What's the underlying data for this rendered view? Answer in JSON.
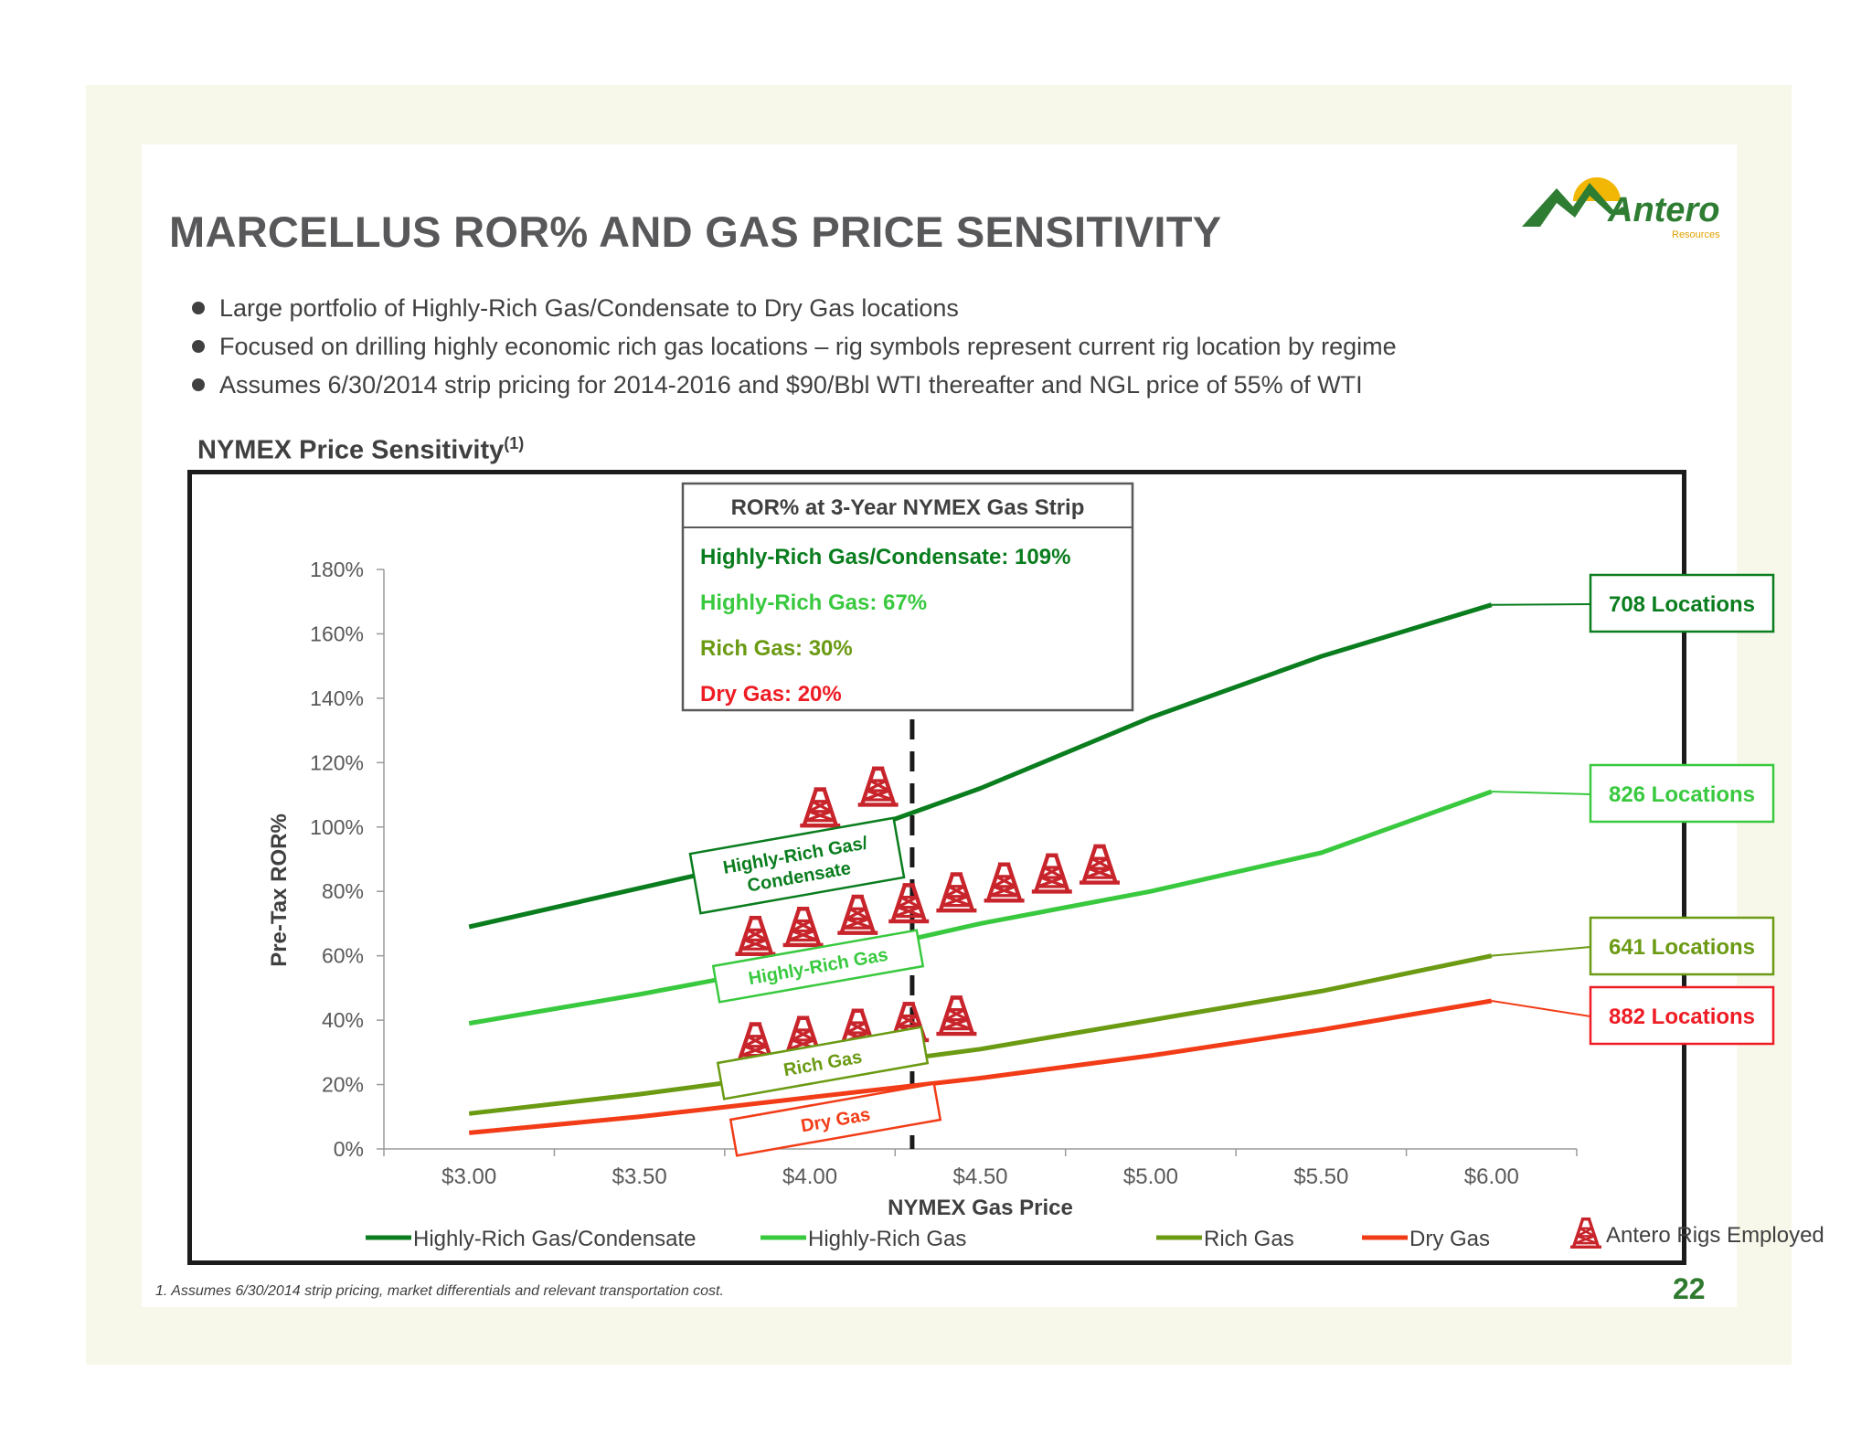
{
  "slide": {
    "title": "MARCELLUS ROR% AND GAS PRICE SENSITIVITY",
    "logo_text": "Antero",
    "logo_subtext": "Resources",
    "bullets": [
      "Large portfolio of Highly-Rich Gas/Condensate to Dry Gas locations",
      "Focused on drilling highly economic rich gas locations – rig symbols represent current rig location by regime",
      "Assumes 6/30/2014 strip pricing for 2014-2016 and $90/Bbl WTI thereafter and NGL price of 55% of WTI"
    ],
    "chart_title": "NYMEX Price Sensitivity",
    "chart_title_sup": "(1)",
    "footnote": "1.  Assumes 6/30/2014 strip pricing, market differentials and relevant transportation cost.",
    "page_number": "22",
    "colors": {
      "title": "#58585a",
      "frame": "#f8f8ea",
      "page_number": "#2f7a2f",
      "logo_green": "#2e7d32",
      "logo_sun": "#f2b705"
    }
  },
  "chart_data": {
    "type": "line",
    "xlabel": "NYMEX Gas Price",
    "ylabel": "Pre-Tax ROR%",
    "x": [
      3.0,
      3.5,
      4.0,
      4.5,
      5.0,
      5.5,
      6.0
    ],
    "x_tick_labels": [
      "$3.00",
      "$3.50",
      "$4.00",
      "$4.50",
      "$5.00",
      "$5.50",
      "$6.00"
    ],
    "y_tick_labels": [
      "0%",
      "20%",
      "40%",
      "60%",
      "80%",
      "100%",
      "120%",
      "140%",
      "160%",
      "180%"
    ],
    "xlim": [
      2.75,
      6.25
    ],
    "ylim": [
      0,
      180
    ],
    "y_step": 20,
    "grid": false,
    "legend_position": "bottom",
    "strip_price": 4.3,
    "series": [
      {
        "name": "Highly-Rich Gas/Condensate",
        "color": "#0a7d1e",
        "values": [
          69,
          81,
          93,
          112,
          134,
          153,
          169
        ],
        "box_label_lines": [
          "Highly-Rich Gas/",
          "Condensate"
        ],
        "locations": "708 Locations"
      },
      {
        "name": "Highly-Rich Gas",
        "color": "#39c93f",
        "values": [
          39,
          48,
          58,
          70,
          80,
          92,
          111
        ],
        "box_label_lines": [
          "Highly-Rich Gas"
        ],
        "locations": "826 Locations"
      },
      {
        "name": "Rich Gas",
        "color": "#6b9a13",
        "values": [
          11,
          17,
          24,
          31,
          40,
          49,
          60
        ],
        "box_label_lines": [
          "Rich Gas"
        ],
        "locations": "641 Locations"
      },
      {
        "name": "Dry Gas",
        "color": "#f23c17",
        "values": [
          5,
          10,
          16,
          22,
          29,
          37,
          46
        ],
        "box_label_lines": [
          "Dry Gas"
        ],
        "locations": "882 Locations"
      }
    ],
    "rig_marker_label": "Antero Rigs Employed",
    "rig_color": "#c8242b",
    "rigs_employed": [
      {
        "series": "Highly-Rich Gas/Condensate",
        "count": 2
      },
      {
        "series": "Highly-Rich Gas",
        "count": 8
      },
      {
        "series": "Rich Gas",
        "count": 5
      }
    ],
    "annotation": {
      "header": "ROR% at 3-Year NYMEX Gas Strip",
      "lines": [
        {
          "text": "Highly-Rich Gas/Condensate: 109%",
          "color": "#0a7d1e"
        },
        {
          "text": "Highly-Rich Gas: 67%",
          "color": "#39c93f"
        },
        {
          "text": "Rich Gas: 30%",
          "color": "#6b9a13"
        },
        {
          "text": "Dry Gas: 20%",
          "color": "#ee1c24"
        }
      ]
    }
  }
}
